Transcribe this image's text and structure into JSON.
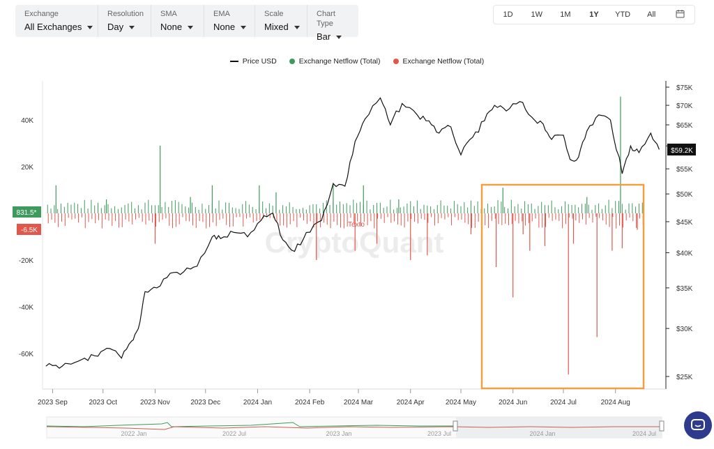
{
  "toolbar": {
    "exchange": {
      "label": "Exchange",
      "value": "All Exchanges"
    },
    "resolution": {
      "label": "Resolution",
      "value": "Day"
    },
    "sma": {
      "label": "SMA",
      "value": "None"
    },
    "ema": {
      "label": "EMA",
      "value": "None"
    },
    "scale": {
      "label": "Scale",
      "value": "Mixed"
    },
    "chart_type": {
      "label": "Chart Type",
      "value": "Bar"
    }
  },
  "range_buttons": [
    "1D",
    "1W",
    "1M",
    "1Y",
    "YTD",
    "All"
  ],
  "active_range": "1Y",
  "icons": {
    "calendar": "calendar-icon",
    "chat": "chat-bubble-icon"
  },
  "watermark": "CryptoQuant",
  "annotation": "Texto",
  "colors": {
    "price": "#111111",
    "inflow": "#3e9a5d",
    "outflow": "#e2574c",
    "highlight": "#f0a040",
    "chat": "#2e3a8c"
  },
  "chart_data": {
    "type": "bar",
    "legend": [
      "Price USD",
      "Exchange Netflow (Total)",
      "Exchange Netflow (Total)"
    ],
    "legend_position": "top",
    "grid": false,
    "x_labels": [
      "2023 Sep",
      "2023 Oct",
      "2023 Nov",
      "2023 Dec",
      "2024 Jan",
      "2024 Feb",
      "2024 Mar",
      "2024 Apr",
      "2024 May",
      "2024 Jun",
      "2024 Jul",
      "2024 Aug"
    ],
    "left_axis": {
      "ticks": [
        "40K",
        "20K",
        "0",
        "-20K",
        "-40K",
        "-60K"
      ],
      "range": [
        -72000,
        52000
      ]
    },
    "right_axis": {
      "ticks": [
        "$75K",
        "$70K",
        "$65K",
        "$60K",
        "$55K",
        "$50K",
        "$45K",
        "$40K",
        "$35K",
        "$30K",
        "$25K"
      ],
      "scale": "log"
    },
    "current_labels": {
      "netflow_in": "831.5*",
      "netflow_out": "-6.5K",
      "price": "$59.2K"
    },
    "series": [
      {
        "name": "Price USD",
        "x": [
          "2023-08-28",
          "2023-09-05",
          "2023-09-12",
          "2023-09-20",
          "2023-09-28",
          "2023-10-05",
          "2023-10-12",
          "2023-10-18",
          "2023-10-22",
          "2023-10-26",
          "2023-11-02",
          "2023-11-10",
          "2023-11-18",
          "2023-11-26",
          "2023-12-05",
          "2023-12-10",
          "2023-12-18",
          "2023-12-26",
          "2024-01-03",
          "2024-01-10",
          "2024-01-16",
          "2024-01-23",
          "2024-01-30",
          "2024-02-08",
          "2024-02-15",
          "2024-02-22",
          "2024-02-28",
          "2024-03-05",
          "2024-03-14",
          "2024-03-20",
          "2024-03-27",
          "2024-04-05",
          "2024-04-12",
          "2024-04-18",
          "2024-04-25",
          "2024-05-01",
          "2024-05-08",
          "2024-05-15",
          "2024-05-21",
          "2024-05-28",
          "2024-06-05",
          "2024-06-12",
          "2024-06-19",
          "2024-06-24",
          "2024-07-01",
          "2024-07-05",
          "2024-07-10",
          "2024-07-15",
          "2024-07-22",
          "2024-07-29",
          "2024-08-05",
          "2024-08-10",
          "2024-08-15",
          "2024-08-22",
          "2024-08-27"
        ],
        "y": [
          26000,
          25800,
          26200,
          26800,
          27000,
          27800,
          26800,
          28600,
          30000,
          34500,
          35000,
          37000,
          37200,
          38000,
          42500,
          42200,
          43200,
          42500,
          45200,
          46500,
          42000,
          40200,
          43200,
          45200,
          52000,
          51500,
          61000,
          66500,
          72000,
          65000,
          70500,
          67500,
          66000,
          63000,
          64500,
          58000,
          62000,
          66000,
          70000,
          68500,
          71000,
          67000,
          65200,
          61500,
          62500,
          57000,
          57500,
          63500,
          67500,
          66200,
          54000,
          60000,
          58500,
          63000,
          59200
        ]
      },
      {
        "name": "Exchange Netflow (Total)",
        "note": "positive netflow (inflow) bars, BTC",
        "x": [
          "2023-09-03",
          "2023-10-03",
          "2023-11-04",
          "2023-11-22",
          "2023-12-05",
          "2024-01-02",
          "2024-01-12",
          "2024-02-15",
          "2024-03-04",
          "2024-03-25",
          "2024-05-26",
          "2024-07-15",
          "2024-08-04"
        ],
        "y": [
          12000,
          6000,
          29000,
          7000,
          12000,
          12000,
          9000,
          13000,
          12000,
          6000,
          11000,
          7000,
          50000
        ]
      },
      {
        "name": "Exchange Netflow (Total)",
        "note": "negative netflow (outflow) bars, BTC",
        "x": [
          "2023-11-01",
          "2024-02-05",
          "2024-02-28",
          "2024-03-12",
          "2024-04-01",
          "2024-04-11",
          "2024-05-07",
          "2024-05-22",
          "2024-06-01",
          "2024-06-07",
          "2024-06-11",
          "2024-06-20",
          "2024-07-04",
          "2024-07-07",
          "2024-07-21",
          "2024-07-30",
          "2024-08-05",
          "2024-08-14"
        ],
        "y": [
          -13000,
          -20000,
          -16000,
          -13000,
          -20000,
          -18000,
          -9000,
          -23000,
          -36000,
          -9000,
          -16000,
          -14000,
          -69000,
          -13000,
          -53000,
          -16000,
          -15000,
          -7000
        ]
      }
    ]
  },
  "navigator": {
    "labels": [
      "2022 Jan",
      "2022 Jul",
      "2023 Jan",
      "2023 Jul",
      "2024 Jan",
      "2024 Jul"
    ]
  }
}
